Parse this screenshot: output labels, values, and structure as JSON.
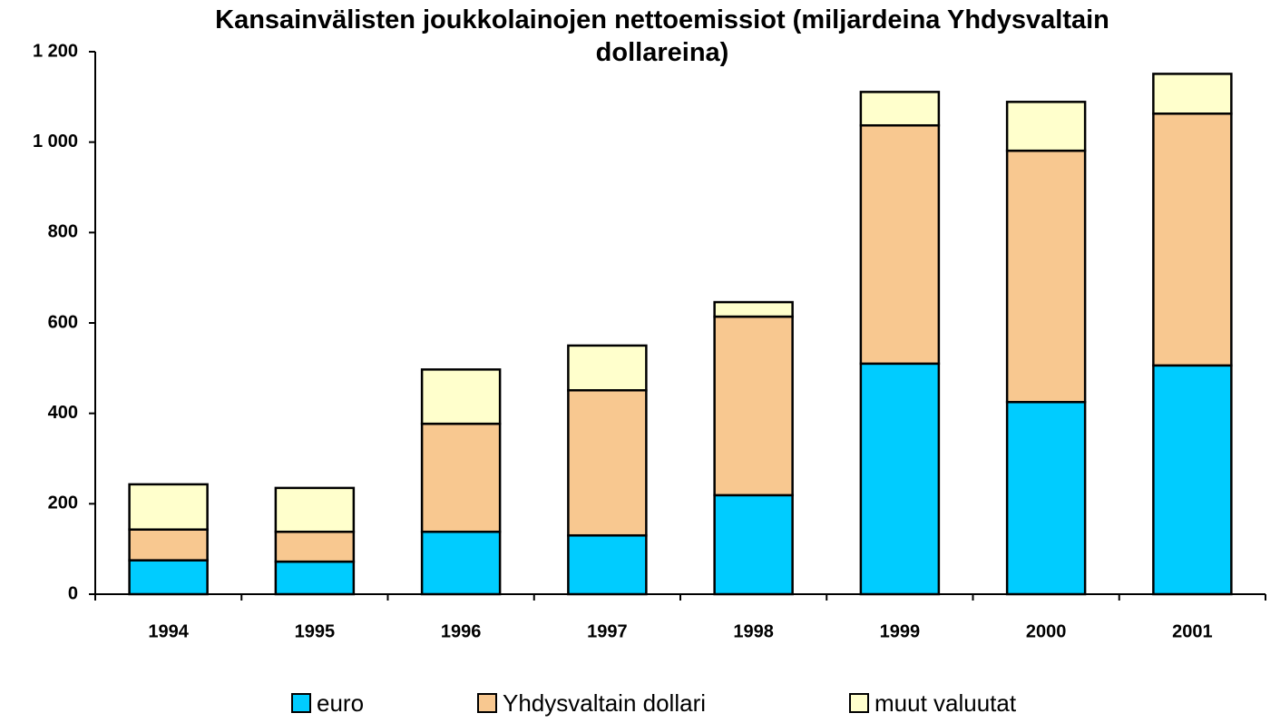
{
  "chart_data": {
    "type": "stacked-bar",
    "title": "Kansainvälisten joukkolainojen nettoemissiot (miljardeina Yhdysvaltain dollareina)",
    "categories": [
      "1994",
      "1995",
      "1996",
      "1997",
      "1998",
      "1999",
      "2000",
      "2001"
    ],
    "series": [
      {
        "name": "euro",
        "color": "#00ccff",
        "values": [
          75,
          72,
          138,
          130,
          219,
          510,
          425,
          506
        ]
      },
      {
        "name": "Yhdysvaltain dollari",
        "color": "#f8c890",
        "values": [
          68,
          66,
          239,
          321,
          395,
          527,
          556,
          557
        ]
      },
      {
        "name": "muut valuutat",
        "color": "#ffffcc",
        "values": [
          100,
          97,
          120,
          99,
          32,
          74,
          108,
          88
        ]
      }
    ],
    "ylim": [
      0,
      1200
    ],
    "yticks": [
      0,
      200,
      400,
      600,
      800,
      {
        "value": 1000,
        "label": "1 000"
      },
      {
        "value": 1200,
        "label": "1 200"
      }
    ],
    "grid": false,
    "legend": "bottom"
  }
}
